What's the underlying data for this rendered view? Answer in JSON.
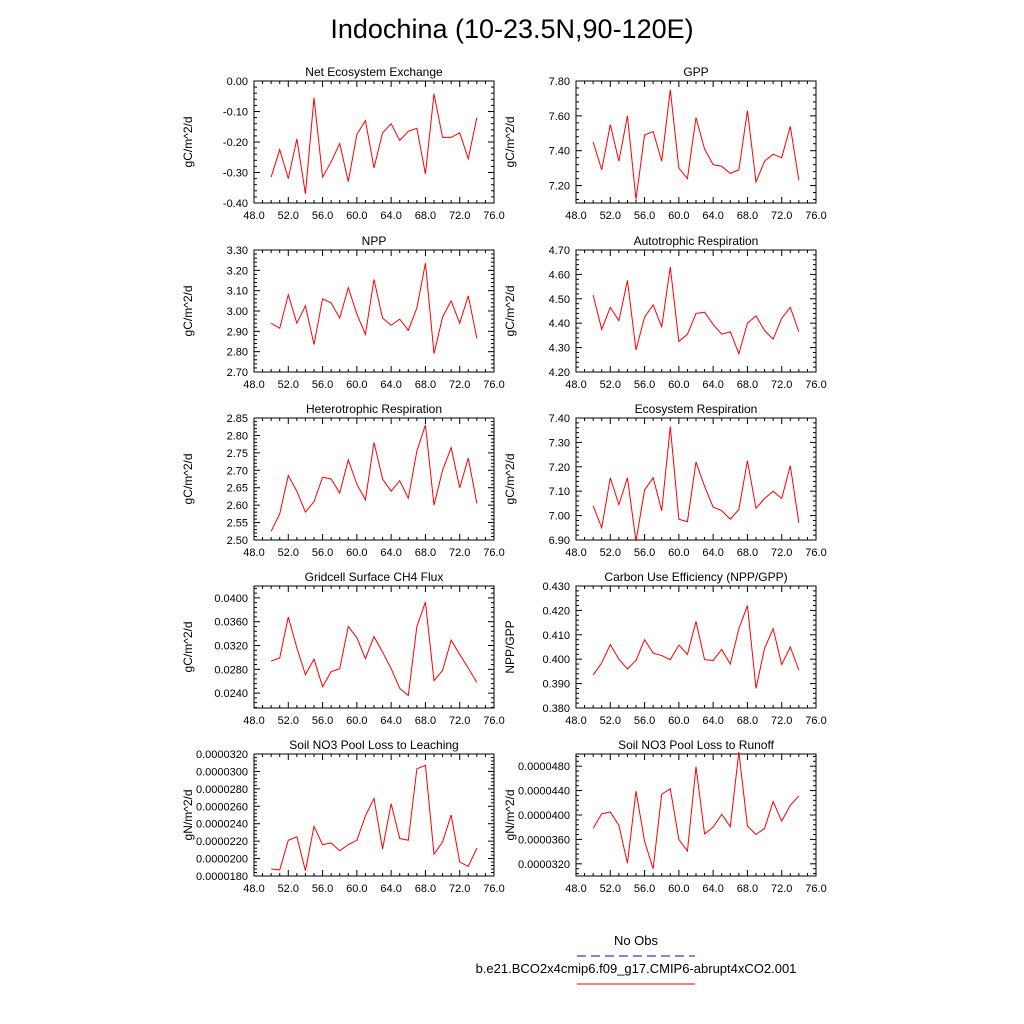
{
  "title": "Indochina (10-23.5N,90-120E)",
  "colors": {
    "model": "#ff0000",
    "obs": "#3b3bd6",
    "axis": "#000000"
  },
  "legend": {
    "obs_label": "No Obs",
    "model_label": "b.e21.BCO2x4cmip6.f09_g17.CMIP6-abrupt4xCO2.001"
  },
  "chart_data": [
    {
      "type": "line",
      "title": "Net Ecosystem Exchange",
      "ylabel": "gC/m^2/d",
      "xlim": [
        48,
        76
      ],
      "ylim": [
        -0.4,
        0.0
      ],
      "xticks": [
        48,
        52,
        56,
        60,
        64,
        68,
        72,
        76
      ],
      "xtick_labels": [
        "48.0",
        "52.0",
        "56.0",
        "60.0",
        "64.0",
        "68.0",
        "72.0",
        "76.0"
      ],
      "yticks": [
        -0.4,
        -0.3,
        -0.2,
        -0.1,
        0.0
      ],
      "ytick_labels": [
        "-0.40",
        "-0.30",
        "-0.20",
        "-0.10",
        "0.00"
      ],
      "x": [
        50,
        51,
        52,
        53,
        54,
        55,
        56,
        57,
        58,
        59,
        60,
        61,
        62,
        63,
        64,
        65,
        66,
        67,
        68,
        69,
        70,
        71,
        72,
        73,
        74
      ],
      "series": [
        {
          "name": "b.e21.BCO2x4cmip6.f09_g17.CMIP6-abrupt4xCO2.001",
          "values": [
            -0.315,
            -0.225,
            -0.32,
            -0.19,
            -0.37,
            -0.055,
            -0.315,
            -0.265,
            -0.205,
            -0.33,
            -0.175,
            -0.13,
            -0.285,
            -0.17,
            -0.14,
            -0.195,
            -0.165,
            -0.155,
            -0.305,
            -0.042,
            -0.185,
            -0.185,
            -0.17,
            -0.255,
            -0.12
          ]
        }
      ]
    },
    {
      "type": "line",
      "title": "GPP",
      "ylabel": "gC/m^2/d",
      "xlim": [
        48,
        76
      ],
      "ylim": [
        7.1,
        7.8
      ],
      "xticks": [
        48,
        52,
        56,
        60,
        64,
        68,
        72,
        76
      ],
      "xtick_labels": [
        "48.0",
        "52.0",
        "56.0",
        "60.0",
        "64.0",
        "68.0",
        "72.0",
        "76.0"
      ],
      "yticks": [
        7.2,
        7.4,
        7.6,
        7.8
      ],
      "ytick_labels": [
        "7.20",
        "7.40",
        "7.60",
        "7.80"
      ],
      "x": [
        50,
        51,
        52,
        53,
        54,
        55,
        56,
        57,
        58,
        59,
        60,
        61,
        62,
        63,
        64,
        65,
        66,
        67,
        68,
        69,
        70,
        71,
        72,
        73,
        74
      ],
      "series": [
        {
          "name": "b.e21.BCO2x4cmip6.f09_g17.CMIP6-abrupt4xCO2.001",
          "values": [
            7.45,
            7.29,
            7.55,
            7.34,
            7.6,
            7.12,
            7.49,
            7.51,
            7.34,
            7.75,
            7.3,
            7.24,
            7.59,
            7.41,
            7.32,
            7.31,
            7.27,
            7.29,
            7.63,
            7.22,
            7.34,
            7.38,
            7.36,
            7.54,
            7.23
          ]
        }
      ]
    },
    {
      "type": "line",
      "title": "NPP",
      "ylabel": "gC/m^2/d",
      "xlim": [
        48,
        76
      ],
      "ylim": [
        2.7,
        3.3
      ],
      "xticks": [
        48,
        52,
        56,
        60,
        64,
        68,
        72,
        76
      ],
      "xtick_labels": [
        "48.0",
        "52.0",
        "56.0",
        "60.0",
        "64.0",
        "68.0",
        "72.0",
        "76.0"
      ],
      "yticks": [
        2.7,
        2.8,
        2.9,
        3.0,
        3.1,
        3.2,
        3.3
      ],
      "ytick_labels": [
        "2.70",
        "2.80",
        "2.90",
        "3.00",
        "3.10",
        "3.20",
        "3.30"
      ],
      "x": [
        50,
        51,
        52,
        53,
        54,
        55,
        56,
        57,
        58,
        59,
        60,
        61,
        62,
        63,
        64,
        65,
        66,
        67,
        68,
        69,
        70,
        71,
        72,
        73,
        74
      ],
      "series": [
        {
          "name": "b.e21.BCO2x4cmip6.f09_g17.CMIP6-abrupt4xCO2.001",
          "values": [
            2.94,
            2.915,
            3.08,
            2.94,
            3.025,
            2.835,
            3.06,
            3.04,
            2.965,
            3.115,
            2.985,
            2.885,
            3.155,
            2.965,
            2.93,
            2.96,
            2.905,
            3.015,
            3.235,
            2.79,
            2.97,
            3.05,
            2.94,
            3.075,
            2.865
          ]
        }
      ]
    },
    {
      "type": "line",
      "title": "Autotrophic Respiration",
      "ylabel": "gC/m^2/d",
      "xlim": [
        48,
        76
      ],
      "ylim": [
        4.2,
        4.7
      ],
      "xticks": [
        48,
        52,
        56,
        60,
        64,
        68,
        72,
        76
      ],
      "xtick_labels": [
        "48.0",
        "52.0",
        "56.0",
        "60.0",
        "64.0",
        "68.0",
        "72.0",
        "76.0"
      ],
      "yticks": [
        4.2,
        4.3,
        4.4,
        4.5,
        4.6,
        4.7
      ],
      "ytick_labels": [
        "4.20",
        "4.30",
        "4.40",
        "4.50",
        "4.60",
        "4.70"
      ],
      "x": [
        50,
        51,
        52,
        53,
        54,
        55,
        56,
        57,
        58,
        59,
        60,
        61,
        62,
        63,
        64,
        65,
        66,
        67,
        68,
        69,
        70,
        71,
        72,
        73,
        74
      ],
      "series": [
        {
          "name": "b.e21.BCO2x4cmip6.f09_g17.CMIP6-abrupt4xCO2.001",
          "values": [
            4.515,
            4.375,
            4.465,
            4.41,
            4.575,
            4.29,
            4.425,
            4.475,
            4.385,
            4.63,
            4.325,
            4.355,
            4.44,
            4.445,
            4.395,
            4.355,
            4.365,
            4.275,
            4.4,
            4.43,
            4.37,
            4.335,
            4.42,
            4.465,
            4.365
          ]
        }
      ]
    },
    {
      "type": "line",
      "title": "Heterotrophic Respiration",
      "ylabel": "gC/m^2/d",
      "xlim": [
        48,
        76
      ],
      "ylim": [
        2.5,
        2.85
      ],
      "xticks": [
        48,
        52,
        56,
        60,
        64,
        68,
        72,
        76
      ],
      "xtick_labels": [
        "48.0",
        "52.0",
        "56.0",
        "60.0",
        "64.0",
        "68.0",
        "72.0",
        "76.0"
      ],
      "yticks": [
        2.5,
        2.55,
        2.6,
        2.65,
        2.7,
        2.75,
        2.8,
        2.85
      ],
      "ytick_labels": [
        "2.50",
        "2.55",
        "2.60",
        "2.65",
        "2.70",
        "2.75",
        "2.80",
        "2.85"
      ],
      "x": [
        50,
        51,
        52,
        53,
        54,
        55,
        56,
        57,
        58,
        59,
        60,
        61,
        62,
        63,
        64,
        65,
        66,
        67,
        68,
        69,
        70,
        71,
        72,
        73,
        74
      ],
      "series": [
        {
          "name": "b.e21.BCO2x4cmip6.f09_g17.CMIP6-abrupt4xCO2.001",
          "values": [
            2.525,
            2.575,
            2.685,
            2.64,
            2.58,
            2.61,
            2.68,
            2.675,
            2.635,
            2.73,
            2.66,
            2.615,
            2.78,
            2.675,
            2.64,
            2.67,
            2.62,
            2.755,
            2.83,
            2.6,
            2.7,
            2.765,
            2.65,
            2.735,
            2.605
          ]
        }
      ]
    },
    {
      "type": "line",
      "title": "Ecosystem Respiration",
      "ylabel": "gC/m^2/d",
      "xlim": [
        48,
        76
      ],
      "ylim": [
        6.9,
        7.4
      ],
      "xticks": [
        48,
        52,
        56,
        60,
        64,
        68,
        72,
        76
      ],
      "xtick_labels": [
        "48.0",
        "52.0",
        "56.0",
        "60.0",
        "64.0",
        "68.0",
        "72.0",
        "76.0"
      ],
      "yticks": [
        6.9,
        7.0,
        7.1,
        7.2,
        7.3,
        7.4
      ],
      "ytick_labels": [
        "6.90",
        "7.00",
        "7.10",
        "7.20",
        "7.30",
        "7.40"
      ],
      "x": [
        50,
        51,
        52,
        53,
        54,
        55,
        56,
        57,
        58,
        59,
        60,
        61,
        62,
        63,
        64,
        65,
        66,
        67,
        68,
        69,
        70,
        71,
        72,
        73,
        74
      ],
      "series": [
        {
          "name": "b.e21.BCO2x4cmip6.f09_g17.CMIP6-abrupt4xCO2.001",
          "values": [
            7.04,
            6.95,
            7.155,
            7.045,
            7.155,
            6.895,
            7.105,
            7.155,
            7.02,
            7.365,
            6.985,
            6.975,
            7.22,
            7.12,
            7.035,
            7.02,
            6.985,
            7.025,
            7.225,
            7.03,
            7.07,
            7.1,
            7.07,
            7.205,
            6.97
          ]
        }
      ]
    },
    {
      "type": "line",
      "title": "Gridcell Surface CH4 Flux",
      "ylabel": "gC/m^2/d",
      "xlim": [
        48,
        76
      ],
      "ylim": [
        0.0215,
        0.042
      ],
      "xticks": [
        48,
        52,
        56,
        60,
        64,
        68,
        72,
        76
      ],
      "xtick_labels": [
        "48.0",
        "52.0",
        "56.0",
        "60.0",
        "64.0",
        "68.0",
        "72.0",
        "76.0"
      ],
      "yticks": [
        0.024,
        0.028,
        0.032,
        0.036,
        0.04
      ],
      "ytick_labels": [
        "0.0240",
        "0.0280",
        "0.0320",
        "0.0360",
        "0.0400"
      ],
      "x": [
        50,
        51,
        52,
        53,
        54,
        55,
        56,
        57,
        58,
        59,
        60,
        61,
        62,
        63,
        64,
        65,
        66,
        67,
        68,
        69,
        70,
        71,
        72,
        73,
        74
      ],
      "series": [
        {
          "name": "b.e21.BCO2x4cmip6.f09_g17.CMIP6-abrupt4xCO2.001",
          "values": [
            0.0294,
            0.0299,
            0.0368,
            0.0316,
            0.0271,
            0.0297,
            0.0251,
            0.0276,
            0.0281,
            0.0352,
            0.0333,
            0.0298,
            0.0335,
            0.0309,
            0.0281,
            0.0248,
            0.0236,
            0.0352,
            0.0393,
            0.0261,
            0.0278,
            0.0329,
            0.0305,
            0.0282,
            0.0258
          ]
        }
      ]
    },
    {
      "type": "line",
      "title": "Carbon Use Efficiency (NPP/GPP)",
      "ylabel": "NPP/GPP",
      "xlim": [
        48,
        76
      ],
      "ylim": [
        0.38,
        0.43
      ],
      "xticks": [
        48,
        52,
        56,
        60,
        64,
        68,
        72,
        76
      ],
      "xtick_labels": [
        "48.0",
        "52.0",
        "56.0",
        "60.0",
        "64.0",
        "68.0",
        "72.0",
        "76.0"
      ],
      "yticks": [
        0.38,
        0.39,
        0.4,
        0.41,
        0.42,
        0.43
      ],
      "ytick_labels": [
        "0.380",
        "0.390",
        "0.400",
        "0.410",
        "0.420",
        "0.430"
      ],
      "x": [
        50,
        51,
        52,
        53,
        54,
        55,
        56,
        57,
        58,
        59,
        60,
        61,
        62,
        63,
        64,
        65,
        66,
        67,
        68,
        69,
        70,
        71,
        72,
        73,
        74
      ],
      "series": [
        {
          "name": "b.e21.BCO2x4cmip6.f09_g17.CMIP6-abrupt4xCO2.001",
          "values": [
            0.3935,
            0.3985,
            0.406,
            0.4,
            0.396,
            0.3995,
            0.408,
            0.4025,
            0.4015,
            0.3998,
            0.4058,
            0.402,
            0.4155,
            0.3998,
            0.3995,
            0.404,
            0.398,
            0.4125,
            0.422,
            0.388,
            0.4045,
            0.4125,
            0.3978,
            0.405,
            0.3955
          ]
        }
      ]
    },
    {
      "type": "line",
      "title": "Soil NO3 Pool Loss to Leaching",
      "ylabel": "gN/m^2/d",
      "xlim": [
        48,
        76
      ],
      "ylim": [
        1.8e-05,
        3.2e-05
      ],
      "xticks": [
        48,
        52,
        56,
        60,
        64,
        68,
        72,
        76
      ],
      "xtick_labels": [
        "48.0",
        "52.0",
        "56.0",
        "60.0",
        "64.0",
        "68.0",
        "72.0",
        "76.0"
      ],
      "yticks": [
        1.8e-05,
        2e-05,
        2.2e-05,
        2.4e-05,
        2.6e-05,
        2.8e-05,
        3e-05,
        3.2e-05
      ],
      "ytick_labels": [
        "0.0000180",
        "0.0000200",
        "0.0000220",
        "0.0000240",
        "0.0000260",
        "0.0000280",
        "0.0000300",
        "0.0000320"
      ],
      "x": [
        50,
        51,
        52,
        53,
        54,
        55,
        56,
        57,
        58,
        59,
        60,
        61,
        62,
        63,
        64,
        65,
        66,
        67,
        68,
        69,
        70,
        71,
        72,
        73,
        74
      ],
      "series": [
        {
          "name": "b.e21.BCO2x4cmip6.f09_g17.CMIP6-abrupt4xCO2.001",
          "values": [
            1.88e-05,
            1.87e-05,
            2.21e-05,
            2.25e-05,
            1.86e-05,
            2.37e-05,
            2.16e-05,
            2.18e-05,
            2.09e-05,
            2.16e-05,
            2.21e-05,
            2.49e-05,
            2.69e-05,
            2.11e-05,
            2.63e-05,
            2.23e-05,
            2.21e-05,
            3.03e-05,
            3.07e-05,
            2.05e-05,
            2.19e-05,
            2.5e-05,
            1.96e-05,
            1.91e-05,
            2.12e-05
          ]
        }
      ]
    },
    {
      "type": "line",
      "title": "Soil NO3 Pool Loss to Runoff",
      "ylabel": "gN/m^2/d",
      "xlim": [
        48,
        76
      ],
      "ylim": [
        3e-05,
        5e-05
      ],
      "xticks": [
        48,
        52,
        56,
        60,
        64,
        68,
        72,
        76
      ],
      "xtick_labels": [
        "48.0",
        "52.0",
        "56.0",
        "60.0",
        "64.0",
        "68.0",
        "72.0",
        "76.0"
      ],
      "yticks": [
        3.2e-05,
        3.6e-05,
        4e-05,
        4.4e-05,
        4.8e-05
      ],
      "ytick_labels": [
        "0.0000320",
        "0.0000360",
        "0.0000400",
        "0.0000440",
        "0.0000480"
      ],
      "x": [
        50,
        51,
        52,
        53,
        54,
        55,
        56,
        57,
        58,
        59,
        60,
        61,
        62,
        63,
        64,
        65,
        66,
        67,
        68,
        69,
        70,
        71,
        72,
        73,
        74
      ],
      "series": [
        {
          "name": "b.e21.BCO2x4cmip6.f09_g17.CMIP6-abrupt4xCO2.001",
          "values": [
            3.78e-05,
            4.02e-05,
            4.05e-05,
            3.83e-05,
            3.21e-05,
            4.39e-05,
            3.57e-05,
            3.12e-05,
            4.34e-05,
            4.43e-05,
            3.6e-05,
            3.41e-05,
            4.79e-05,
            3.69e-05,
            3.8e-05,
            4.01e-05,
            3.81e-05,
            5.03e-05,
            3.82e-05,
            3.68e-05,
            3.78e-05,
            4.22e-05,
            3.9e-05,
            4.16e-05,
            4.31e-05
          ]
        }
      ]
    }
  ]
}
